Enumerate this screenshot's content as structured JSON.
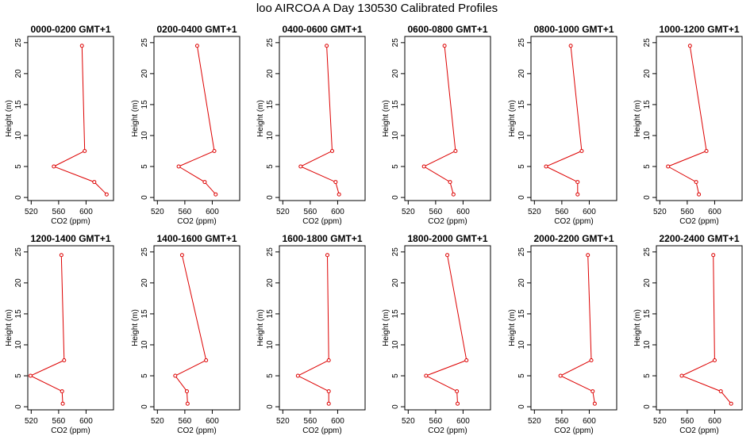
{
  "title": "loo AIRCOA A  Day 130530  Calibrated Profiles",
  "colors": {
    "line": "#dd0000",
    "frame": "#000000"
  },
  "chart_data": [
    {
      "type": "line",
      "title": "0000-0200 GMT+1",
      "xlabel": "CO2 (ppm)",
      "ylabel": "Height (m)",
      "xlim": [
        515,
        640
      ],
      "ylim": [
        -0.5,
        26
      ],
      "xticks": [
        520,
        560,
        600
      ],
      "yticks": [
        0,
        5,
        10,
        15,
        20,
        25
      ],
      "grid": false,
      "series": [
        {
          "x": [
            594,
            598,
            553,
            612,
            630
          ],
          "y": [
            24.5,
            7.5,
            5.0,
            2.5,
            0.5
          ]
        }
      ]
    },
    {
      "type": "line",
      "title": "0200-0400 GMT+1",
      "xlabel": "CO2 (ppm)",
      "ylabel": "Height (m)",
      "xlim": [
        515,
        640
      ],
      "ylim": [
        -0.5,
        26
      ],
      "xticks": [
        520,
        560,
        600
      ],
      "yticks": [
        0,
        5,
        10,
        15,
        20,
        25
      ],
      "grid": false,
      "series": [
        {
          "x": [
            578,
            603,
            551,
            589,
            605
          ],
          "y": [
            24.5,
            7.5,
            5.0,
            2.5,
            0.5
          ]
        }
      ]
    },
    {
      "type": "line",
      "title": "0400-0600 GMT+1",
      "xlabel": "CO2 (ppm)",
      "ylabel": "Height (m)",
      "xlim": [
        515,
        640
      ],
      "ylim": [
        -0.5,
        26
      ],
      "xticks": [
        520,
        560,
        600
      ],
      "yticks": [
        0,
        5,
        10,
        15,
        20,
        25
      ],
      "grid": false,
      "series": [
        {
          "x": [
            584,
            592,
            546,
            597,
            602
          ],
          "y": [
            24.5,
            7.5,
            5.0,
            2.5,
            0.5
          ]
        }
      ]
    },
    {
      "type": "line",
      "title": "0600-0800 GMT+1",
      "xlabel": "CO2 (ppm)",
      "ylabel": "Height (m)",
      "xlim": [
        515,
        640
      ],
      "ylim": [
        -0.5,
        26
      ],
      "xticks": [
        520,
        560,
        600
      ],
      "yticks": [
        0,
        5,
        10,
        15,
        20,
        25
      ],
      "grid": false,
      "series": [
        {
          "x": [
            573,
            589,
            543,
            581,
            586
          ],
          "y": [
            24.5,
            7.5,
            5.0,
            2.5,
            0.5
          ]
        }
      ]
    },
    {
      "type": "line",
      "title": "0800-1000 GMT+1",
      "xlabel": "CO2 (ppm)",
      "ylabel": "Height (m)",
      "xlim": [
        515,
        640
      ],
      "ylim": [
        -0.5,
        26
      ],
      "xticks": [
        520,
        560,
        600
      ],
      "yticks": [
        0,
        5,
        10,
        15,
        20,
        25
      ],
      "grid": false,
      "series": [
        {
          "x": [
            573,
            589,
            537,
            583,
            583
          ],
          "y": [
            24.5,
            7.5,
            5.0,
            2.5,
            0.5
          ]
        }
      ]
    },
    {
      "type": "line",
      "title": "1000-1200 GMT+1",
      "xlabel": "CO2 (ppm)",
      "ylabel": "Height (m)",
      "xlim": [
        515,
        640
      ],
      "ylim": [
        -0.5,
        26
      ],
      "xticks": [
        520,
        560,
        600
      ],
      "yticks": [
        0,
        5,
        10,
        15,
        20,
        25
      ],
      "grid": false,
      "series": [
        {
          "x": [
            564,
            588,
            532,
            573,
            577
          ],
          "y": [
            24.5,
            7.5,
            5.0,
            2.5,
            0.5
          ]
        }
      ]
    },
    {
      "type": "line",
      "title": "1200-1400 GMT+1",
      "xlabel": "CO2 (ppm)",
      "ylabel": "Height (m)",
      "xlim": [
        515,
        640
      ],
      "ylim": [
        -0.5,
        26
      ],
      "xticks": [
        520,
        560,
        600
      ],
      "yticks": [
        0,
        5,
        10,
        15,
        20,
        25
      ],
      "grid": false,
      "series": [
        {
          "x": [
            564,
            568,
            519,
            565,
            566
          ],
          "y": [
            24.5,
            7.5,
            5.0,
            2.5,
            0.5
          ]
        }
      ]
    },
    {
      "type": "line",
      "title": "1400-1600 GMT+1",
      "xlabel": "CO2 (ppm)",
      "ylabel": "Height (m)",
      "xlim": [
        515,
        640
      ],
      "ylim": [
        -0.5,
        26
      ],
      "xticks": [
        520,
        560,
        600
      ],
      "yticks": [
        0,
        5,
        10,
        15,
        20,
        25
      ],
      "grid": false,
      "series": [
        {
          "x": [
            556,
            591,
            546,
            563,
            564
          ],
          "y": [
            24.5,
            7.5,
            5.0,
            2.5,
            0.5
          ]
        }
      ]
    },
    {
      "type": "line",
      "title": "1600-1800 GMT+1",
      "xlabel": "CO2 (ppm)",
      "ylabel": "Height (m)",
      "xlim": [
        515,
        640
      ],
      "ylim": [
        -0.5,
        26
      ],
      "xticks": [
        520,
        560,
        600
      ],
      "yticks": [
        0,
        5,
        10,
        15,
        20,
        25
      ],
      "grid": false,
      "series": [
        {
          "x": [
            585,
            587,
            542,
            587,
            587
          ],
          "y": [
            24.5,
            7.5,
            5.0,
            2.5,
            0.5
          ]
        }
      ]
    },
    {
      "type": "line",
      "title": "1800-2000 GMT+1",
      "xlabel": "CO2 (ppm)",
      "ylabel": "Height (m)",
      "xlim": [
        515,
        640
      ],
      "ylim": [
        -0.5,
        26
      ],
      "xticks": [
        520,
        560,
        600
      ],
      "yticks": [
        0,
        5,
        10,
        15,
        20,
        25
      ],
      "grid": false,
      "series": [
        {
          "x": [
            577,
            605,
            546,
            591,
            592
          ],
          "y": [
            24.5,
            7.5,
            5.0,
            2.5,
            0.5
          ]
        }
      ]
    },
    {
      "type": "line",
      "title": "2000-2200 GMT+1",
      "xlabel": "CO2 (ppm)",
      "ylabel": "Height (m)",
      "xlim": [
        515,
        640
      ],
      "ylim": [
        -0.5,
        26
      ],
      "xticks": [
        520,
        560,
        600
      ],
      "yticks": [
        0,
        5,
        10,
        15,
        20,
        25
      ],
      "grid": false,
      "series": [
        {
          "x": [
            598,
            603,
            558,
            605,
            608
          ],
          "y": [
            24.5,
            7.5,
            5.0,
            2.5,
            0.5
          ]
        }
      ]
    },
    {
      "type": "line",
      "title": "2200-2400 GMT+1",
      "xlabel": "CO2 (ppm)",
      "ylabel": "Height (m)",
      "xlim": [
        515,
        640
      ],
      "ylim": [
        -0.5,
        26
      ],
      "xticks": [
        520,
        560,
        600
      ],
      "yticks": [
        0,
        5,
        10,
        15,
        20,
        25
      ],
      "grid": false,
      "series": [
        {
          "x": [
            598,
            600,
            552,
            609,
            624
          ],
          "y": [
            24.5,
            7.5,
            5.0,
            2.5,
            0.5
          ]
        }
      ]
    }
  ]
}
